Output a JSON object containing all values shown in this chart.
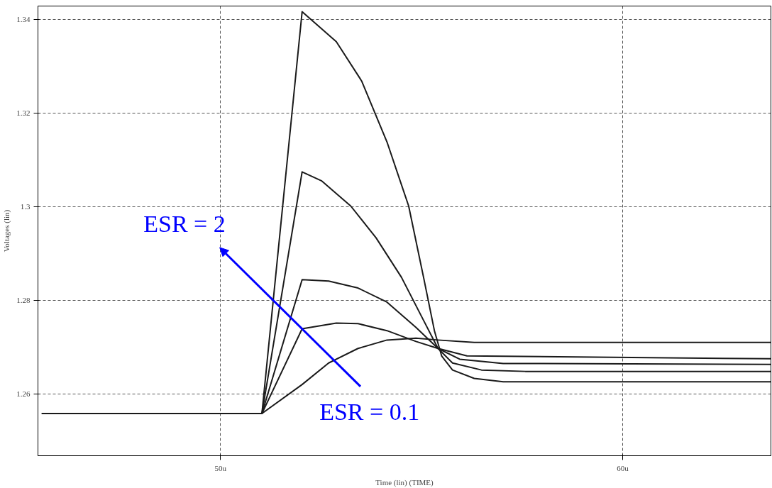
{
  "chart_data": {
    "type": "line",
    "xlabel": "Time (lin) (TIME)",
    "ylabel": "Voltages (lin)",
    "xlim": [
      45.46,
      63.69
    ],
    "ylim": [
      1.2469,
      1.3429
    ],
    "xticks": [
      {
        "value": 50,
        "label": "50u"
      },
      {
        "value": 60,
        "label": "60u"
      }
    ],
    "yticks": [
      1.26,
      1.28,
      {
        "value": 1.3,
        "label": "1.3"
      },
      1.32,
      1.34
    ],
    "grid": true,
    "line_style": "solid",
    "marker": "none",
    "annotations": [
      "ESR = 2",
      "ESR = 0.1"
    ],
    "series": [
      {
        "color": "#1a1a1a",
        "x": [
          45.55,
          51.03,
          52.03,
          52.88,
          53.51,
          54.14,
          54.68,
          55.05,
          55.32,
          55.5,
          55.77,
          56.31,
          57.03,
          63.69
        ],
        "values": [
          1.2559,
          1.2559,
          1.3417,
          1.3353,
          1.3269,
          1.3139,
          1.3002,
          1.285,
          1.2736,
          1.2682,
          1.2652,
          1.2634,
          1.2627,
          1.2627
        ]
      },
      {
        "color": "#1a1a1a",
        "x": [
          51.03,
          52.03,
          52.51,
          53.24,
          53.87,
          54.5,
          55.05,
          55.41,
          55.77,
          56.49,
          57.58,
          63.69
        ],
        "values": [
          1.2559,
          1.3075,
          1.3056,
          1.3002,
          1.2934,
          1.285,
          1.2758,
          1.2698,
          1.2667,
          1.2652,
          1.2649,
          1.2649
        ]
      },
      {
        "color": "#1a1a1a",
        "x": [
          51.03,
          52.03,
          52.69,
          53.42,
          54.14,
          54.86,
          55.41,
          55.95,
          57.03,
          63.69
        ],
        "values": [
          1.2559,
          1.2845,
          1.2842,
          1.2827,
          1.2797,
          1.2743,
          1.2698,
          1.2675,
          1.2666,
          1.2664
        ]
      },
      {
        "color": "#1a1a1a",
        "x": [
          51.03,
          52.03,
          52.88,
          53.42,
          54.14,
          54.86,
          55.41,
          56.13,
          63.69
        ],
        "values": [
          1.2559,
          1.274,
          1.2752,
          1.2751,
          1.2736,
          1.2713,
          1.2698,
          1.2682,
          1.2676
        ]
      },
      {
        "color": "#1a1a1a",
        "x": [
          51.03,
          52.03,
          52.69,
          53.42,
          54.14,
          54.86,
          55.41,
          56.31,
          63.69
        ],
        "values": [
          1.2559,
          1.2621,
          1.2667,
          1.2698,
          1.2716,
          1.272,
          1.2716,
          1.2711,
          1.2711
        ]
      }
    ]
  }
}
